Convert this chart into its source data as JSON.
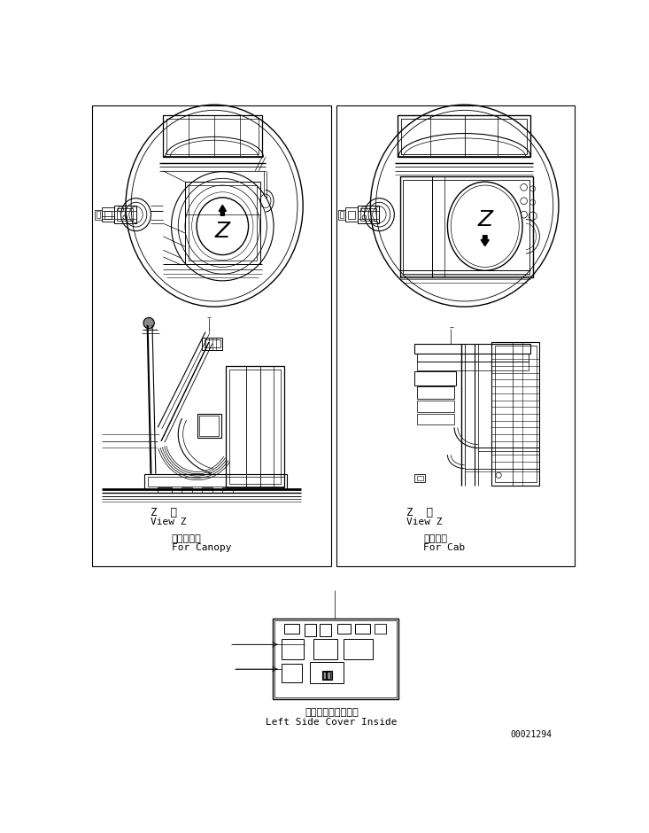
{
  "bg_color": "#ffffff",
  "line_color": "#000000",
  "fig_width": 7.33,
  "fig_height": 9.4,
  "left_label_ja": "キャノピ用",
  "left_label_en": "For Canopy",
  "right_label_ja": "キャブ用",
  "right_label_en": "For Cab",
  "view_ja": "Z　視",
  "view_en": "View Z",
  "bottom_ja": "左サイドカバー内側",
  "bottom_en": "Left Side Cover Inside",
  "serial": "00021294"
}
